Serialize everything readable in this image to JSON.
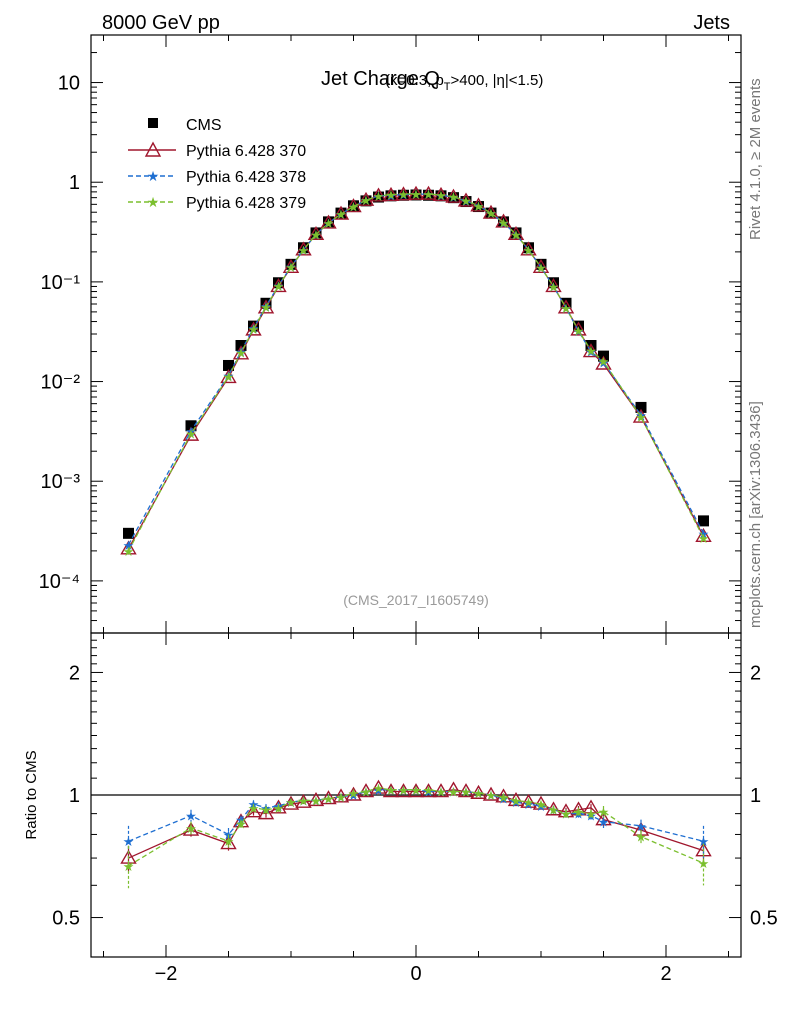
{
  "header": {
    "energy_label": "8000 GeV pp",
    "category_label": "Jets",
    "side_rivet": "Rivet 4.1.0, ≥ 2M events",
    "side_mcplots": "mcplots.cern.ch [arXiv:1306.3436]"
  },
  "chart_data": [
    {
      "type": "scatter",
      "panel": "main",
      "title_main": "Jet Charge Q",
      "title_sub": "(κ=0.3, p_T>400, |η|<1.5)",
      "watermark": "(CMS_2017_I1605749)",
      "yscale": "log",
      "xlim": [
        -2.6,
        2.6
      ],
      "ylim": [
        3e-05,
        30
      ],
      "xticks": [
        -2,
        0,
        2
      ],
      "yticks": [
        {
          "value": 10,
          "label": "10"
        },
        {
          "value": 1,
          "label": "1"
        },
        {
          "value": 0.1,
          "label": "10⁻¹"
        },
        {
          "value": 0.01,
          "label": "10⁻²"
        },
        {
          "value": 0.001,
          "label": "10⁻³"
        },
        {
          "value": 0.0001,
          "label": "10⁻⁴"
        }
      ],
      "legend_position": "top-left",
      "x": [
        -2.3,
        -1.8,
        -1.5,
        -1.4,
        -1.3,
        -1.2,
        -1.1,
        -1.0,
        -0.9,
        -0.8,
        -0.7,
        -0.6,
        -0.5,
        -0.4,
        -0.3,
        -0.2,
        -0.1,
        0.0,
        0.1,
        0.2,
        0.3,
        0.4,
        0.5,
        0.6,
        0.7,
        0.8,
        0.9,
        1.0,
        1.1,
        1.2,
        1.3,
        1.4,
        1.5,
        1.8,
        2.3
      ],
      "series": [
        {
          "name": "CMS",
          "color": "#000000",
          "marker": "square",
          "values": [
            0.0003,
            0.0036,
            0.0145,
            0.023,
            0.036,
            0.061,
            0.098,
            0.15,
            0.22,
            0.31,
            0.4,
            0.49,
            0.58,
            0.65,
            0.71,
            0.73,
            0.74,
            0.745,
            0.74,
            0.73,
            0.7,
            0.64,
            0.57,
            0.49,
            0.4,
            0.31,
            0.22,
            0.15,
            0.098,
            0.061,
            0.036,
            0.023,
            0.018,
            0.0055,
            0.0004
          ]
        },
        {
          "name": "Pythia 6.428 370",
          "color": "#a0162d",
          "marker": "triangle",
          "dash": "",
          "values": [
            0.00021,
            0.0029,
            0.011,
            0.019,
            0.033,
            0.055,
            0.09,
            0.14,
            0.21,
            0.3,
            0.39,
            0.48,
            0.57,
            0.66,
            0.73,
            0.74,
            0.75,
            0.76,
            0.76,
            0.74,
            0.71,
            0.65,
            0.58,
            0.49,
            0.4,
            0.3,
            0.21,
            0.14,
            0.09,
            0.055,
            0.033,
            0.02,
            0.015,
            0.0044,
            0.00028
          ]
        },
        {
          "name": "Pythia 6.428 378",
          "color": "#1f6fd1",
          "marker": "star",
          "dash": "5,3",
          "values": [
            0.00023,
            0.0032,
            0.0115,
            0.02,
            0.0345,
            0.057,
            0.092,
            0.142,
            0.21,
            0.3,
            0.39,
            0.48,
            0.57,
            0.66,
            0.73,
            0.74,
            0.75,
            0.76,
            0.76,
            0.74,
            0.71,
            0.65,
            0.58,
            0.49,
            0.39,
            0.3,
            0.21,
            0.14,
            0.09,
            0.055,
            0.032,
            0.02,
            0.0155,
            0.0046,
            0.0003
          ]
        },
        {
          "name": "Pythia 6.428 379",
          "color": "#7bbf2e",
          "marker": "star",
          "dash": "5,3",
          "values": [
            0.0002,
            0.003,
            0.0112,
            0.0195,
            0.0335,
            0.056,
            0.091,
            0.141,
            0.21,
            0.3,
            0.39,
            0.48,
            0.57,
            0.66,
            0.73,
            0.75,
            0.76,
            0.765,
            0.76,
            0.745,
            0.715,
            0.655,
            0.58,
            0.49,
            0.395,
            0.3,
            0.21,
            0.14,
            0.09,
            0.055,
            0.0325,
            0.0205,
            0.016,
            0.0044,
            0.00027
          ]
        }
      ]
    },
    {
      "type": "line",
      "panel": "ratio",
      "ylabel": "Ratio to CMS",
      "yscale": "log",
      "xlim": [
        -2.6,
        2.6
      ],
      "ylim": [
        0.4,
        2.5
      ],
      "xticks": [
        -2,
        0,
        2
      ],
      "yticks": [
        {
          "value": 2,
          "label": "2"
        },
        {
          "value": 1,
          "label": "1"
        },
        {
          "value": 0.5,
          "label": "0.5"
        }
      ],
      "reference_line": 1,
      "x": [
        -2.3,
        -1.8,
        -1.5,
        -1.4,
        -1.3,
        -1.2,
        -1.1,
        -1.0,
        -0.9,
        -0.8,
        -0.7,
        -0.6,
        -0.5,
        -0.4,
        -0.3,
        -0.2,
        -0.1,
        0.0,
        0.1,
        0.2,
        0.3,
        0.4,
        0.5,
        0.6,
        0.7,
        0.8,
        0.9,
        1.0,
        1.1,
        1.2,
        1.3,
        1.4,
        1.5,
        1.8,
        2.3
      ],
      "series": [
        {
          "name": "Pythia 6.428 370",
          "color": "#a0162d",
          "marker": "triangle",
          "dash": "",
          "values": [
            0.7,
            0.82,
            0.76,
            0.86,
            0.91,
            0.9,
            0.93,
            0.95,
            0.96,
            0.97,
            0.98,
            0.99,
            1.0,
            1.02,
            1.04,
            1.02,
            1.02,
            1.02,
            1.02,
            1.02,
            1.03,
            1.02,
            1.01,
            1.0,
            0.99,
            0.97,
            0.96,
            0.95,
            0.92,
            0.91,
            0.92,
            0.93,
            0.87,
            0.82,
            0.73
          ],
          "errors": [
            0.05,
            0.03,
            0.03,
            0.02,
            0.02,
            0.02,
            0.02,
            0.01,
            0.01,
            0.01,
            0.01,
            0.01,
            0.01,
            0.01,
            0.01,
            0.01,
            0.01,
            0.01,
            0.01,
            0.01,
            0.01,
            0.01,
            0.01,
            0.01,
            0.01,
            0.01,
            0.01,
            0.01,
            0.02,
            0.02,
            0.02,
            0.02,
            0.03,
            0.03,
            0.05
          ]
        },
        {
          "name": "Pythia 6.428 378",
          "color": "#1f6fd1",
          "marker": "star",
          "dash": "5,3",
          "values": [
            0.77,
            0.89,
            0.8,
            0.87,
            0.95,
            0.93,
            0.94,
            0.96,
            0.97,
            0.97,
            0.98,
            0.99,
            1.0,
            1.02,
            1.03,
            1.03,
            1.03,
            1.03,
            1.02,
            1.02,
            1.02,
            1.02,
            1.01,
            1.0,
            0.98,
            0.96,
            0.95,
            0.94,
            0.92,
            0.9,
            0.9,
            0.89,
            0.86,
            0.84,
            0.77
          ],
          "errors": [
            0.07,
            0.03,
            0.03,
            0.02,
            0.02,
            0.02,
            0.02,
            0.01,
            0.01,
            0.01,
            0.01,
            0.01,
            0.01,
            0.01,
            0.01,
            0.01,
            0.01,
            0.01,
            0.01,
            0.01,
            0.01,
            0.01,
            0.01,
            0.01,
            0.01,
            0.01,
            0.01,
            0.01,
            0.02,
            0.02,
            0.02,
            0.02,
            0.03,
            0.03,
            0.07
          ]
        },
        {
          "name": "Pythia 6.428 379",
          "color": "#7bbf2e",
          "marker": "star",
          "dash": "5,3",
          "values": [
            0.67,
            0.83,
            0.77,
            0.85,
            0.93,
            0.92,
            0.93,
            0.96,
            0.97,
            0.97,
            0.98,
            0.99,
            1.01,
            1.02,
            1.04,
            1.03,
            1.03,
            1.03,
            1.03,
            1.02,
            1.02,
            1.02,
            1.01,
            1.0,
            0.99,
            0.97,
            0.96,
            0.95,
            0.92,
            0.9,
            0.91,
            0.9,
            0.91,
            0.79,
            0.68
          ],
          "errors": [
            0.08,
            0.03,
            0.03,
            0.02,
            0.02,
            0.02,
            0.02,
            0.01,
            0.01,
            0.01,
            0.01,
            0.01,
            0.01,
            0.01,
            0.01,
            0.01,
            0.01,
            0.01,
            0.01,
            0.01,
            0.01,
            0.01,
            0.01,
            0.01,
            0.01,
            0.01,
            0.01,
            0.01,
            0.02,
            0.02,
            0.02,
            0.02,
            0.03,
            0.03,
            0.08
          ]
        }
      ]
    }
  ]
}
